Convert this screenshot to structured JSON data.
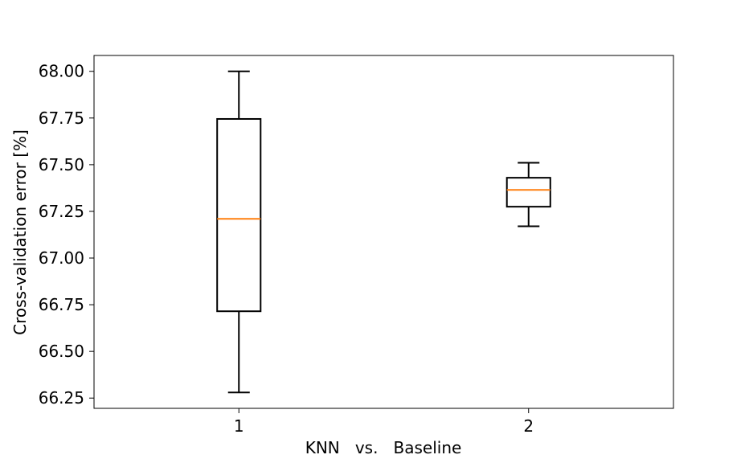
{
  "chart_data": {
    "type": "box",
    "title": "",
    "xlabel": "KNN   vs.   Baseline",
    "ylabel": "Cross-validation error [%]",
    "categories": [
      "1",
      "2"
    ],
    "ylim": [
      66.195,
      68.085
    ],
    "yticks": [
      66.25,
      66.5,
      66.75,
      67.0,
      67.25,
      67.5,
      67.75,
      68.0
    ],
    "ytick_labels": [
      "66.25",
      "66.50",
      "66.75",
      "67.00",
      "67.25",
      "67.50",
      "67.75",
      "68.00"
    ],
    "grid": false,
    "boxes": [
      {
        "label": "1",
        "whisker_low": 66.28,
        "q1": 66.715,
        "median": 67.21,
        "q3": 67.745,
        "whisker_high": 68.0
      },
      {
        "label": "2",
        "whisker_low": 67.17,
        "q1": 67.275,
        "median": 67.365,
        "q3": 67.43,
        "whisker_high": 67.51
      }
    ],
    "colors": {
      "box": "#000000",
      "median": "#ff7f0e",
      "axes": "#000000"
    }
  }
}
